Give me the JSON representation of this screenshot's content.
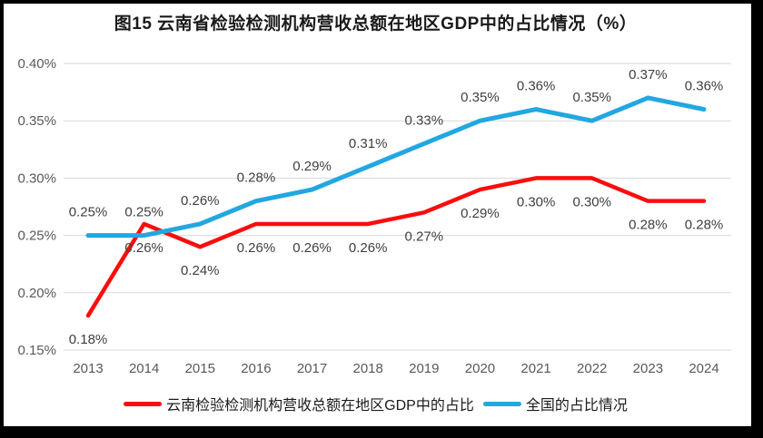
{
  "chart_data": {
    "type": "line",
    "title": "图15 云南省检验检测机构营收总额在地区GDP中的占比情况（%）",
    "categories": [
      "2013",
      "2014",
      "2015",
      "2016",
      "2017",
      "2018",
      "2019",
      "2020",
      "2021",
      "2022",
      "2023",
      "2024"
    ],
    "series": [
      {
        "name": "云南检验检测机构营收总额在地区GDP中的占比",
        "color": "#FB0D0D",
        "label_position": "below",
        "values": [
          0.18,
          0.26,
          0.24,
          0.26,
          0.26,
          0.26,
          0.27,
          0.29,
          0.3,
          0.3,
          0.28,
          0.28
        ],
        "data_labels": [
          "0.18%",
          "0.26%",
          "0.24%",
          "0.26%",
          "0.26%",
          "0.26%",
          "0.27%",
          "0.29%",
          "0.30%",
          "0.30%",
          "0.28%",
          "0.28%"
        ]
      },
      {
        "name": "全国的占比情况",
        "color": "#22A7E1",
        "label_position": "above",
        "values": [
          0.25,
          0.25,
          0.26,
          0.28,
          0.29,
          0.31,
          0.33,
          0.35,
          0.36,
          0.35,
          0.37,
          0.36
        ],
        "data_labels": [
          "0.25%",
          "0.25%",
          "0.26%",
          "0.28%",
          "0.29%",
          "0.31%",
          "0.33%",
          "0.35%",
          "0.36%",
          "0.35%",
          "0.37%",
          "0.36%"
        ]
      }
    ],
    "y_axis": {
      "min": 0.15,
      "max": 0.4,
      "step": 0.05,
      "tick_labels": [
        "0.15%",
        "0.20%",
        "0.25%",
        "0.30%",
        "0.35%",
        "0.40%"
      ]
    },
    "grid": true,
    "legend_position": "bottom",
    "colors": {
      "gridline": "#D9D9D9",
      "data_label": "#3F3F3F",
      "axis_label": "#595959",
      "frame_border": "#000000",
      "background": "#FFFFFF"
    }
  }
}
